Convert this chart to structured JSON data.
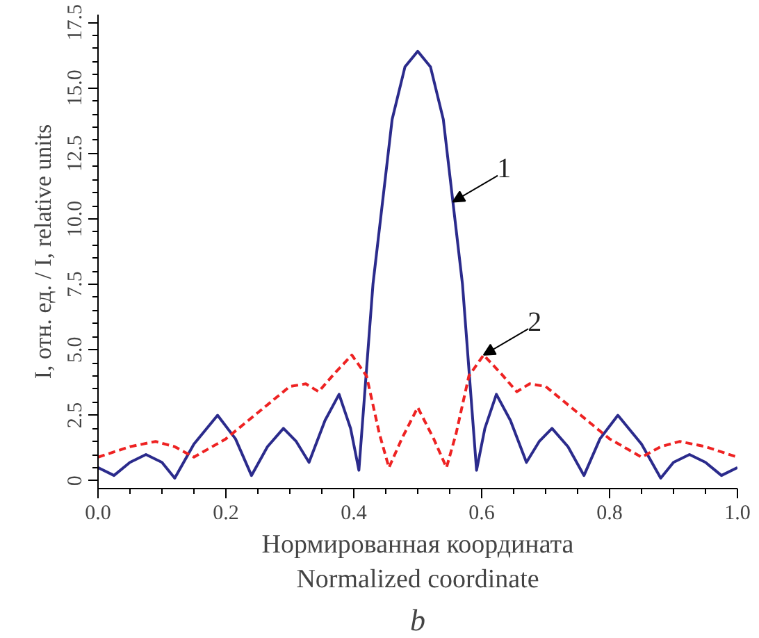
{
  "chart_data": {
    "type": "line",
    "xlabel": "Нормированная координата\nNormalized coordinate",
    "ylabel": "I, отн. ед. / I, relative units",
    "xlim": [
      0,
      1
    ],
    "ylim": [
      -0.3,
      17.8
    ],
    "xticks": [
      {
        "value": 0,
        "label": "0.0"
      },
      0.2,
      0.4,
      0.6,
      0.8,
      {
        "value": 1,
        "label": "1.0"
      }
    ],
    "yticks": [
      0,
      2.5,
      {
        "value": 5,
        "label": "5.0"
      },
      7.5,
      {
        "value": 10,
        "label": "10.0"
      },
      12.5,
      {
        "value": 15,
        "label": "15.0"
      },
      17.5
    ],
    "grid": false,
    "marker": "none",
    "series": [
      {
        "name": "1",
        "color": "#2b2b8c",
        "line_style": "solid",
        "x": [
          0,
          0.025,
          0.05,
          0.075,
          0.1,
          0.12,
          0.15,
          0.187,
          0.215,
          0.24,
          0.265,
          0.29,
          0.31,
          0.33,
          0.355,
          0.377,
          0.395,
          0.408,
          0.43,
          0.46,
          0.48,
          0.5,
          0.52,
          0.54,
          0.57,
          0.592,
          0.605,
          0.623,
          0.645,
          0.67,
          0.69,
          0.71,
          0.735,
          0.76,
          0.785,
          0.813,
          0.85,
          0.88,
          0.9,
          0.925,
          0.95,
          0.975,
          1
        ],
        "values": [
          0.5,
          0.2,
          0.7,
          1.0,
          0.7,
          0.1,
          1.4,
          2.5,
          1.6,
          0.2,
          1.3,
          2.0,
          1.5,
          0.7,
          2.3,
          3.3,
          2.0,
          0.4,
          7.5,
          13.8,
          15.8,
          16.4,
          15.8,
          13.8,
          7.5,
          0.4,
          2.0,
          3.3,
          2.3,
          0.7,
          1.5,
          2.0,
          1.3,
          0.2,
          1.6,
          2.5,
          1.4,
          0.1,
          0.7,
          1.0,
          0.7,
          0.2,
          0.5
        ]
      },
      {
        "name": "2",
        "color": "#ee2222",
        "line_style": "dashed",
        "x": [
          0,
          0.05,
          0.09,
          0.12,
          0.15,
          0.2,
          0.25,
          0.3,
          0.325,
          0.345,
          0.37,
          0.397,
          0.42,
          0.44,
          0.455,
          0.475,
          0.5,
          0.525,
          0.545,
          0.56,
          0.58,
          0.603,
          0.63,
          0.655,
          0.675,
          0.7,
          0.75,
          0.8,
          0.85,
          0.88,
          0.91,
          0.95,
          1
        ],
        "values": [
          0.9,
          1.3,
          1.5,
          1.3,
          0.9,
          1.6,
          2.6,
          3.6,
          3.7,
          3.4,
          4.1,
          4.8,
          4.0,
          1.8,
          0.5,
          1.6,
          2.8,
          1.6,
          0.5,
          1.8,
          4.0,
          4.8,
          4.1,
          3.4,
          3.7,
          3.6,
          2.6,
          1.6,
          0.9,
          1.3,
          1.5,
          1.3,
          0.9
        ]
      }
    ],
    "annotations": [
      "b"
    ]
  }
}
